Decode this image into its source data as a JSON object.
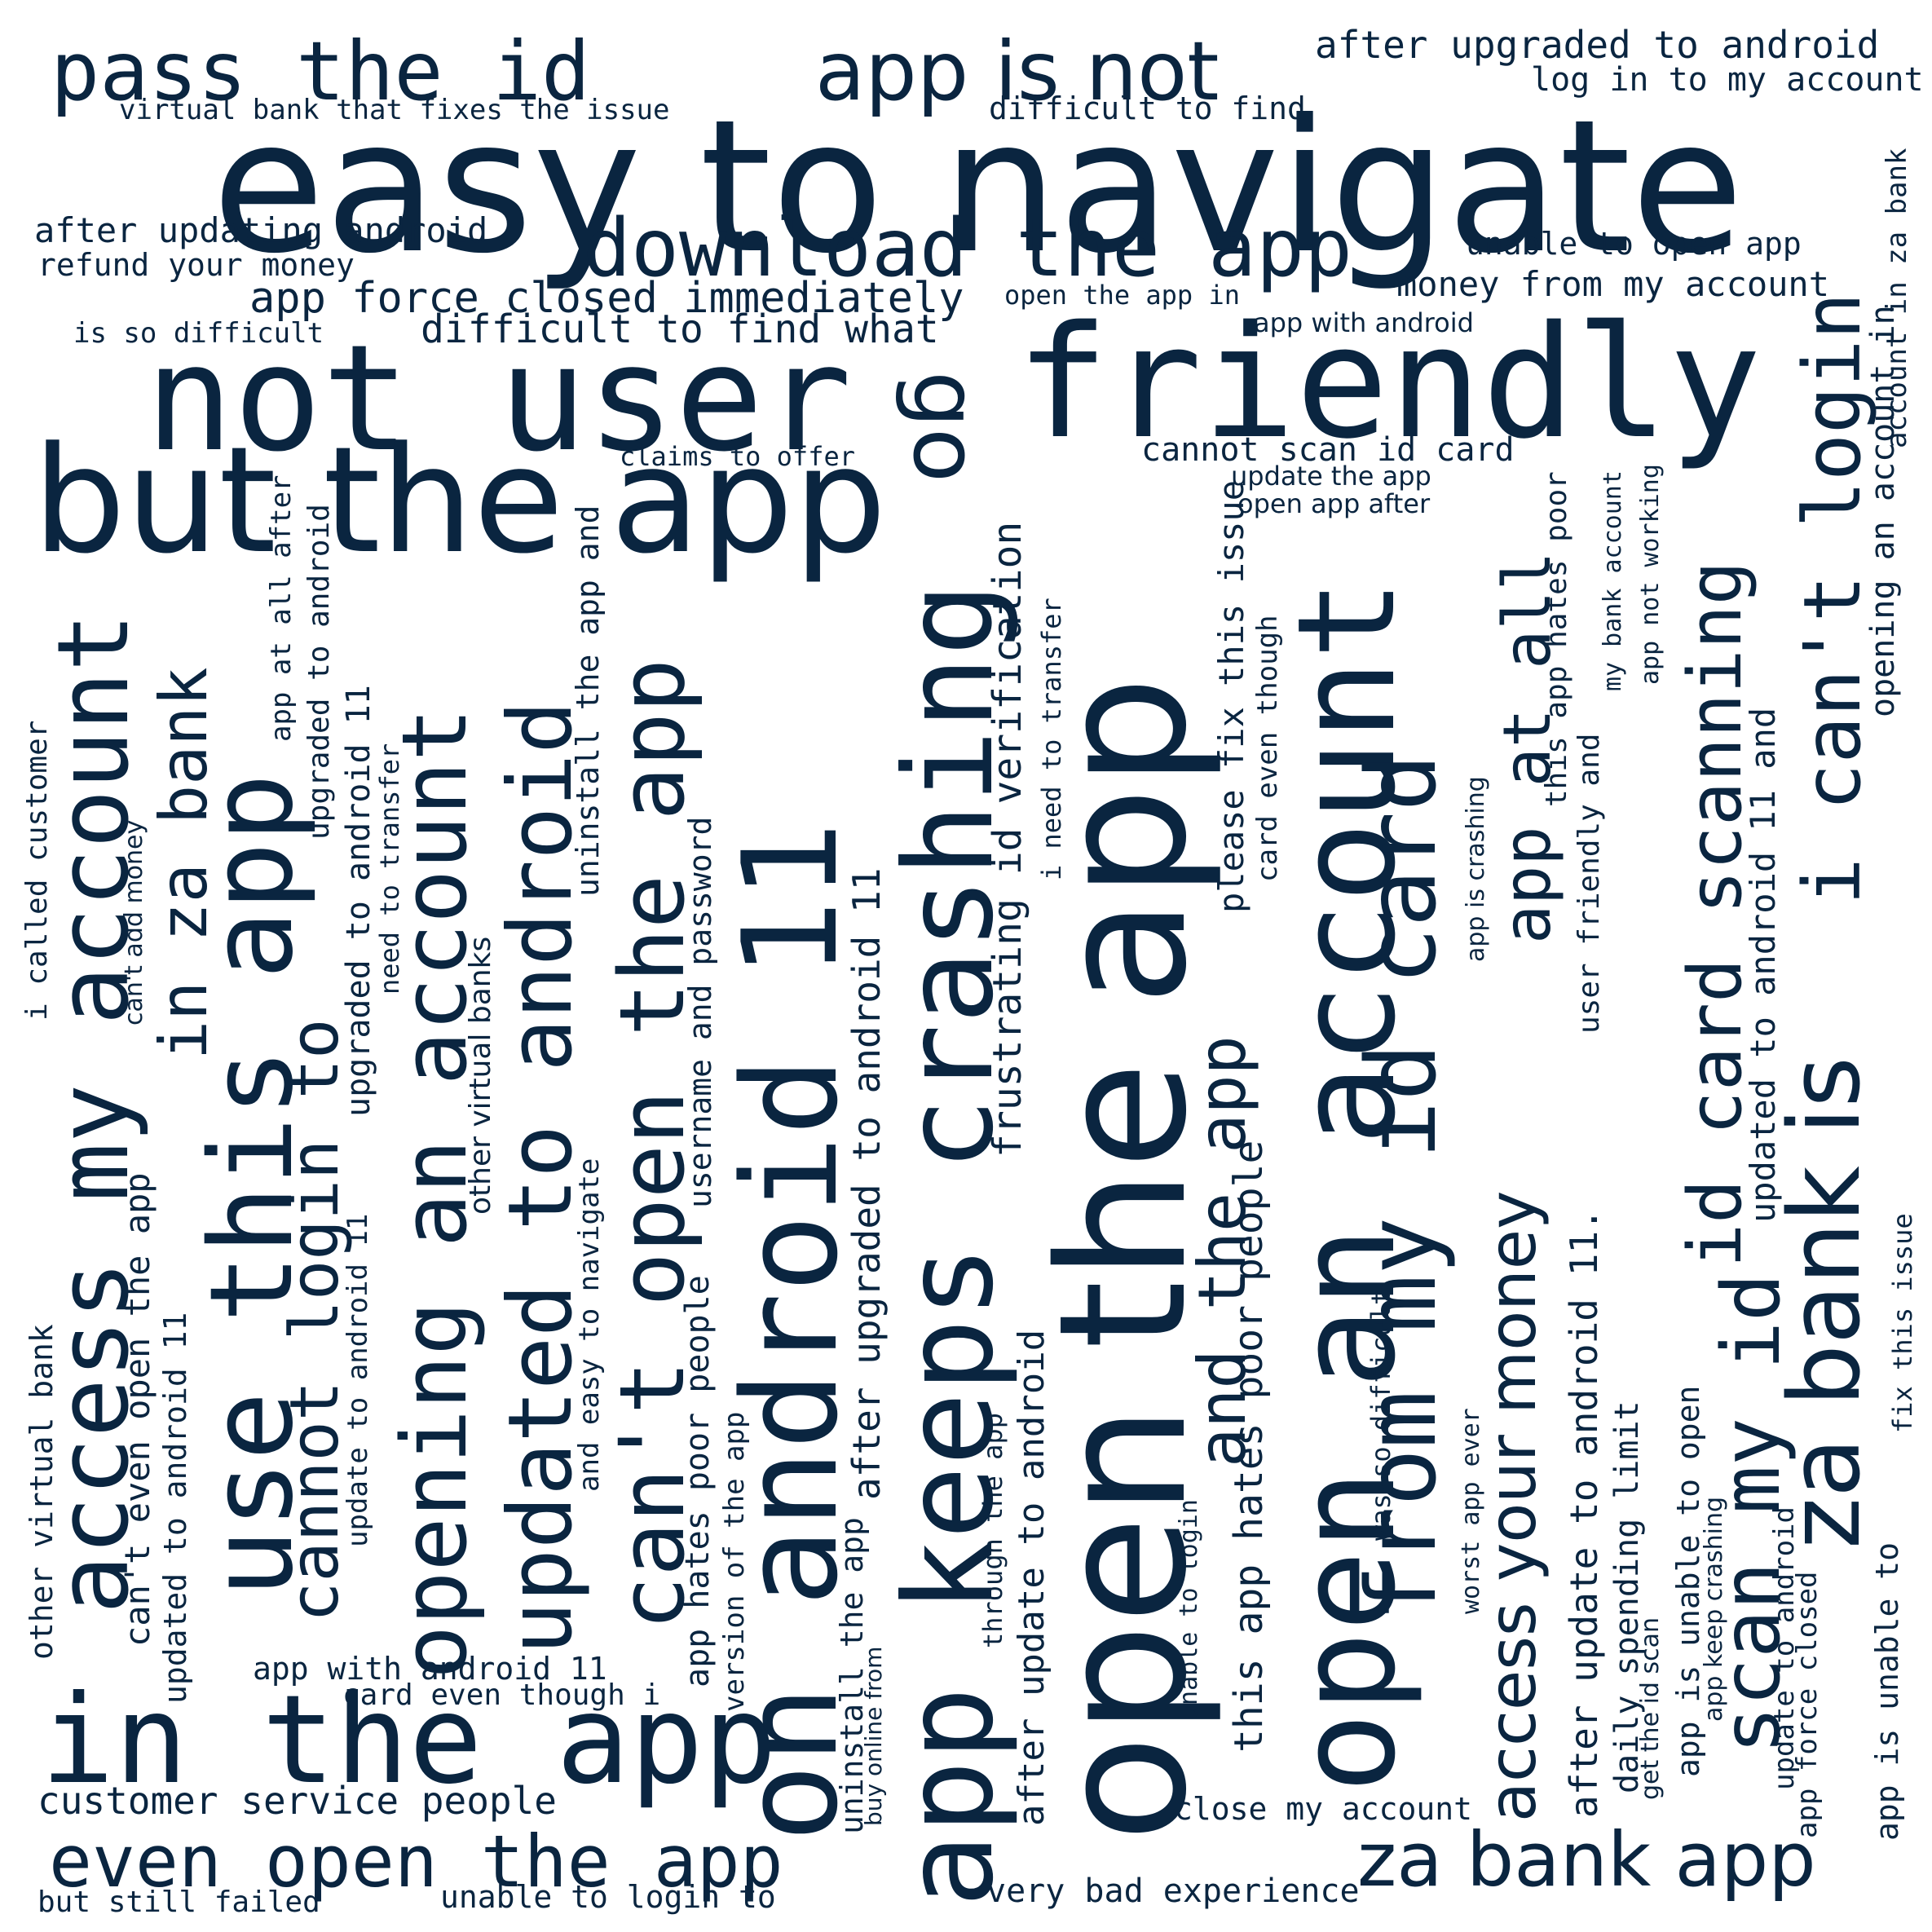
{
  "theme": {
    "word_color": "#0a2540",
    "background": "#ffffff"
  },
  "words": {
    "easy_to_navigate": "easy to navigate",
    "not_user": "not user",
    "friendly": "friendly",
    "open_the_app": "open the app",
    "go": "go",
    "pass_the_id": "pass the id",
    "app_is_not": "app is not",
    "after_upgraded_to_android": "after upgraded to android",
    "log_in_to_my_account": "log in to my account",
    "virtual_bank_that_fixes": "virtual bank that fixes the issue",
    "difficult_to_find": "difficult to find",
    "download_the_app": "download the app",
    "unable_to_open_app": "unable to open app",
    "after_updating_android": "after updating android",
    "refund_your_money": "refund your money",
    "app_force_closed_immediately": "app force closed immediately",
    "open_the_app_in": "open the app in",
    "money_from_my_account": "money from my account",
    "is_so_difficult": "is so difficult",
    "difficult_to_find_what": "difficult to find what",
    "app_with_android": "app with android",
    "but_the_app": "but the app",
    "claims_to_offer": "claims to offer",
    "cannot_scan_id_card": "cannot scan id card",
    "update_the_app": "update the app",
    "open_app_after": "open app after",
    "in_the_app": "in the app",
    "customer_service_people": "customer service people",
    "even_open_the_app": "even open the app",
    "but_still_failed": "but still failed",
    "unable_to_login_to": "unable to login to",
    "very_bad_experience": "very bad experience",
    "close_my_account": "close my account",
    "za_bank_app": "za bank app",
    "app_with_android_11": "app with android 11",
    "card_even_though_i": "card even though i",
    "access_my_account": "access my account",
    "use_this_app": "use this app",
    "in_za_bank": "in za bank",
    "cannot_login_to": "cannot login to",
    "opening_an_account": "opening an account",
    "updated_to_android": "updated to android",
    "cant_open_the_app": "can't open the app",
    "on_android_11": "on android 11",
    "app_keeps_crashing": "app keeps crashing",
    "open_an_account": "open an account",
    "from_my_id_card": "from my id card",
    "za_bank_is": "za bank is",
    "i_cant_login": "i can't login",
    "and_the_app": "and the app",
    "access_your_money": "access your money",
    "app_at_all": "app at all",
    "scan_my_id": "scan my id",
    "id_card_scanning": "id card scanning",
    "i_called_customer": "i called customer",
    "other_virtual_bank": "other virtual bank",
    "cant_add_money": "can't add money",
    "cant_even_open_the_app": "can't even open the app",
    "updated_to_android_11_a": "updated to android 11",
    "app_at_all_after": "app at all after",
    "upgraded_to_android_11": "upgraded to android 11",
    "upgraded_to_android": "upgraded to android",
    "need_to_transfer": "need to transfer",
    "update_to_android_11": "update to android 11",
    "other_virtual_banks": "other virtual banks",
    "and_easy_to_navigate": "and easy to navigate",
    "uninstall_the_app_and": "uninstall the app and",
    "username_and_password": "username and password",
    "app_hates_poor_people": "app hates poor people",
    "version_of_the_app": "version of the app",
    "uninstall_the_app": "uninstall the app",
    "buy_online_from": "buy online from",
    "after_upgraded_to_android_11": "after upgraded to android 11",
    "after_update_to_android": "after update to android",
    "through_the_app": "through the app",
    "frustrating_id_verification": "frustrating id verification",
    "i_need_to_transfer": "i need to transfer",
    "unable_to_login": "unable to login",
    "this_app_hates_poor_people": "this app hates poor people",
    "please_fix_this_issue": "please fix this issue",
    "card_even_though": "card even though",
    "was_so_difficult": "was so difficult",
    "worst_app_ever": "worst app ever",
    "app_is_crashing": "app is crashing",
    "this_app_hates_poor": "this app hates poor",
    "user_friendly_and": "user friendly and",
    "my_bank_account": "my bank account",
    "app_not_working": "app not working",
    "after_update_to_android_11": "after update to android 11.",
    "daily_spending_limit": "daily spending limit",
    "get_the_id_scan": "get the id scan",
    "app_is_unable_to_open": "app is unable to open",
    "app_keep_crashing": "app keep crashing",
    "updated_to_android_11_and": "updated to android 11 and",
    "update_to_android": "update to android",
    "app_force_closed": "app force closed",
    "app_is_unable_to": "app is unable to",
    "fix_this_issue": "fix this issue",
    "opening_an_account_in": "opening an account in",
    "account_in_za_bank": "account in za bank"
  }
}
